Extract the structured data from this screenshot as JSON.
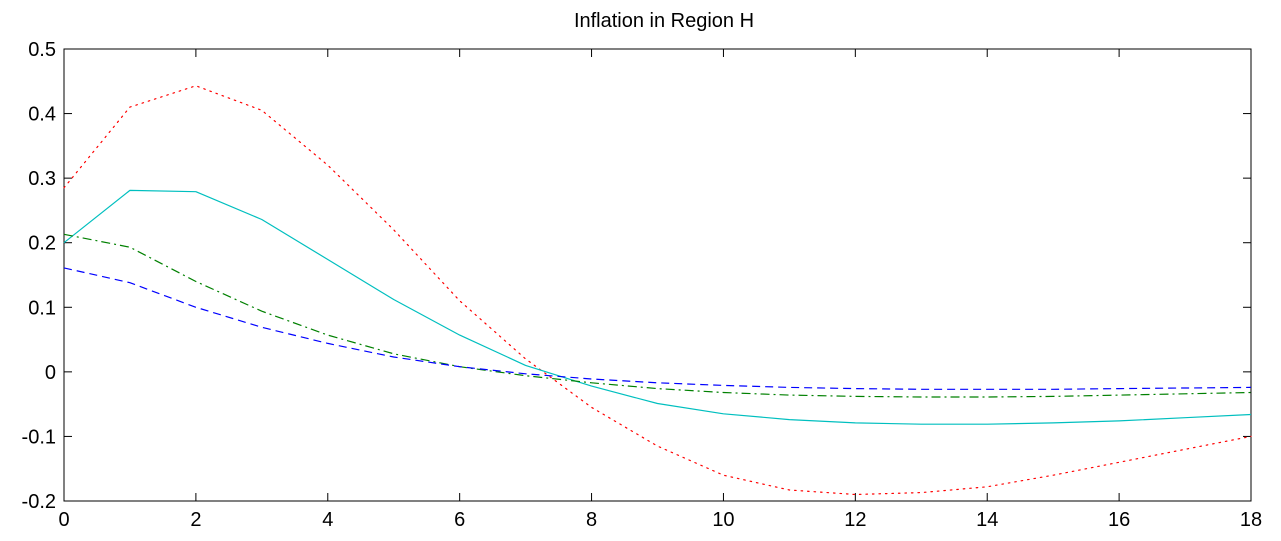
{
  "chart_data": {
    "type": "line",
    "title": "Inflation in Region H",
    "xlabel": "",
    "ylabel": "",
    "xlim": [
      0,
      18
    ],
    "ylim": [
      -0.2,
      0.5
    ],
    "x_ticks": [
      0,
      2,
      4,
      6,
      8,
      10,
      12,
      14,
      16,
      18
    ],
    "x_tick_labels": [
      "0",
      "2",
      "4",
      "6",
      "8",
      "10",
      "12",
      "14",
      "16",
      "18"
    ],
    "y_ticks": [
      -0.2,
      -0.1,
      0,
      0.1,
      0.2,
      0.3,
      0.4,
      0.5
    ],
    "y_tick_labels": [
      "-0.2",
      "-0.1",
      "0",
      "0.1",
      "0.2",
      "0.3",
      "0.4",
      "0.5"
    ],
    "grid": false,
    "legend": "none",
    "x": [
      0,
      1,
      2,
      3,
      4,
      5,
      6,
      7,
      8,
      9,
      10,
      11,
      12,
      13,
      14,
      15,
      16,
      17,
      18
    ],
    "series": [
      {
        "color": "#ff0000",
        "line_style": "dotted",
        "values": [
          0.285,
          0.41,
          0.443,
          0.405,
          0.32,
          0.22,
          0.11,
          0.02,
          -0.055,
          -0.115,
          -0.16,
          -0.183,
          -0.19,
          -0.187,
          -0.178,
          -0.16,
          -0.14,
          -0.12,
          -0.1
        ]
      },
      {
        "color": "#00bfbf",
        "line_style": "solid",
        "values": [
          0.2,
          0.281,
          0.279,
          0.236,
          0.174,
          0.112,
          0.057,
          0.01,
          -0.022,
          -0.049,
          -0.065,
          -0.074,
          -0.079,
          -0.081,
          -0.081,
          -0.079,
          -0.076,
          -0.071,
          -0.066
        ]
      },
      {
        "color": "#008000",
        "line_style": "dashdot",
        "values": [
          0.213,
          0.193,
          0.14,
          0.094,
          0.057,
          0.028,
          0.008,
          -0.006,
          -0.017,
          -0.026,
          -0.032,
          -0.036,
          -0.038,
          -0.039,
          -0.039,
          -0.038,
          -0.036,
          -0.034,
          -0.032
        ]
      },
      {
        "color": "#0000ff",
        "line_style": "dashed",
        "values": [
          0.161,
          0.138,
          0.1,
          0.069,
          0.044,
          0.023,
          0.008,
          -0.003,
          -0.011,
          -0.017,
          -0.021,
          -0.024,
          -0.026,
          -0.027,
          -0.027,
          -0.027,
          -0.026,
          -0.025,
          -0.024
        ]
      }
    ]
  }
}
